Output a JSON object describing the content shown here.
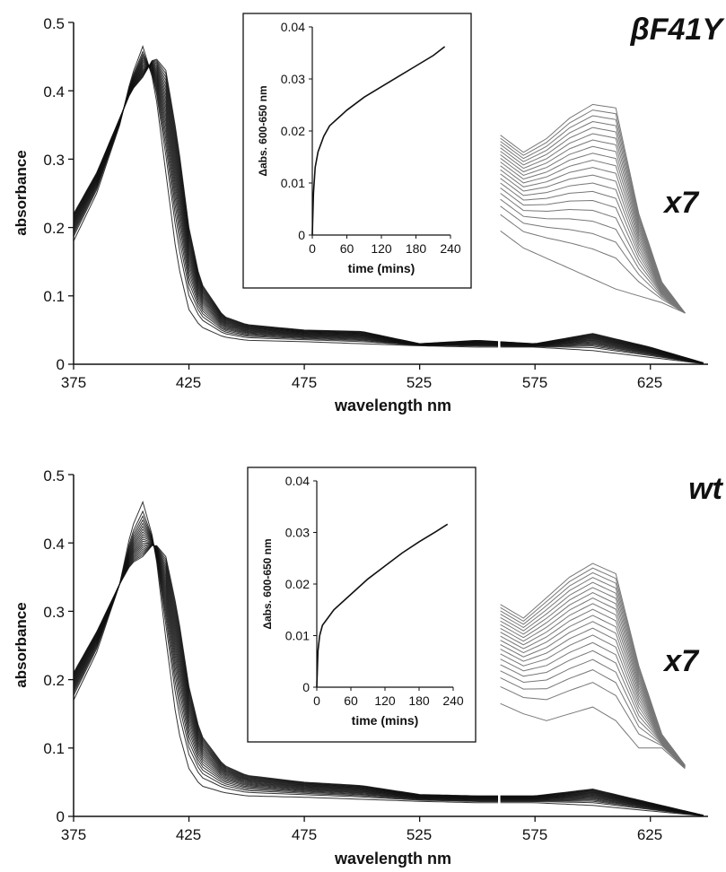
{
  "chart_data": [
    {
      "type": "line",
      "panel_label": "βF41Y",
      "scale_label": "x7",
      "xlabel": "wavelength nm",
      "ylabel": "absorbance",
      "xlim": [
        375,
        650
      ],
      "ylim": [
        0,
        0.5
      ],
      "xticks": [
        "375",
        "425",
        "475",
        "525",
        "575",
        "625"
      ],
      "yticks": [
        "0",
        "0.1",
        "0.2",
        "0.3",
        "0.4",
        "0.5"
      ],
      "n_traces": 20,
      "initial_spectrum": {
        "x": [
          375,
          385,
          395,
          400,
          405,
          410,
          415,
          420,
          425,
          430,
          440,
          450,
          475,
          500,
          525,
          550,
          575,
          600,
          625,
          650
        ],
        "y": [
          0.18,
          0.25,
          0.35,
          0.42,
          0.465,
          0.41,
          0.28,
          0.15,
          0.08,
          0.055,
          0.04,
          0.035,
          0.033,
          0.03,
          0.027,
          0.025,
          0.025,
          0.02,
          0.01,
          0.0
        ]
      },
      "final_spectrum": {
        "x": [
          375,
          385,
          395,
          400,
          405,
          410,
          415,
          420,
          425,
          430,
          440,
          450,
          475,
          500,
          525,
          550,
          575,
          600,
          625,
          650
        ],
        "y": [
          0.22,
          0.28,
          0.36,
          0.4,
          0.42,
          0.45,
          0.43,
          0.33,
          0.2,
          0.12,
          0.07,
          0.058,
          0.05,
          0.048,
          0.03,
          0.035,
          0.03,
          0.045,
          0.025,
          0.0
        ]
      },
      "scaled_region": {
        "x": [
          560,
          570,
          580,
          590,
          600,
          610,
          620,
          630,
          640
        ],
        "initial": [
          0.195,
          0.17,
          0.155,
          0.14,
          0.125,
          0.11,
          0.1,
          0.09,
          0.075
        ],
        "final": [
          0.335,
          0.31,
          0.33,
          0.36,
          0.38,
          0.375,
          0.22,
          0.12,
          0.075
        ]
      },
      "inset": {
        "xlabel": "time (mins)",
        "ylabel": "Δabs. 600-650 nm",
        "xlim": [
          0,
          240
        ],
        "ylim": [
          0,
          0.04
        ],
        "xticks": [
          "0",
          "60",
          "120",
          "180",
          "240"
        ],
        "yticks": [
          "0",
          "0.01",
          "0.02",
          "0.03",
          "0.04"
        ],
        "x": [
          0,
          2,
          5,
          10,
          20,
          30,
          45,
          60,
          90,
          120,
          150,
          180,
          210,
          230
        ],
        "y": [
          0,
          0.008,
          0.013,
          0.016,
          0.019,
          0.021,
          0.0225,
          0.024,
          0.0265,
          0.0285,
          0.0305,
          0.0325,
          0.0345,
          0.0362
        ]
      }
    },
    {
      "type": "line",
      "panel_label": "wt",
      "scale_label": "x7",
      "xlabel": "wavelength nm",
      "ylabel": "absorbance",
      "xlim": [
        375,
        650
      ],
      "ylim": [
        0,
        0.5
      ],
      "xticks": [
        "375",
        "425",
        "475",
        "525",
        "575",
        "625"
      ],
      "yticks": [
        "0",
        "0.1",
        "0.2",
        "0.3",
        "0.4",
        "0.5"
      ],
      "n_traces": 20,
      "initial_spectrum": {
        "x": [
          375,
          385,
          395,
          400,
          405,
          410,
          415,
          420,
          425,
          430,
          440,
          450,
          475,
          500,
          525,
          550,
          575,
          600,
          625,
          650
        ],
        "y": [
          0.17,
          0.24,
          0.34,
          0.42,
          0.46,
          0.4,
          0.26,
          0.13,
          0.07,
          0.045,
          0.035,
          0.03,
          0.028,
          0.025,
          0.022,
          0.02,
          0.02,
          0.016,
          0.008,
          0.0
        ]
      },
      "final_spectrum": {
        "x": [
          375,
          385,
          395,
          400,
          405,
          410,
          415,
          420,
          425,
          430,
          440,
          450,
          475,
          500,
          525,
          550,
          575,
          600,
          625,
          650
        ],
        "y": [
          0.21,
          0.27,
          0.34,
          0.37,
          0.38,
          0.4,
          0.38,
          0.3,
          0.19,
          0.12,
          0.075,
          0.06,
          0.05,
          0.045,
          0.032,
          0.03,
          0.03,
          0.04,
          0.02,
          0.0
        ]
      },
      "scaled_region": {
        "x": [
          560,
          570,
          580,
          590,
          600,
          610,
          620,
          630,
          640
        ],
        "initial": [
          0.165,
          0.15,
          0.14,
          0.15,
          0.16,
          0.14,
          0.1,
          0.1,
          0.07
        ],
        "final": [
          0.31,
          0.29,
          0.32,
          0.35,
          0.37,
          0.355,
          0.22,
          0.12,
          0.075
        ]
      },
      "inset": {
        "xlabel": "time (mins)",
        "ylabel": "Δabs. 600-650 nm",
        "xlim": [
          0,
          240
        ],
        "ylim": [
          0,
          0.04
        ],
        "xticks": [
          "0",
          "60",
          "120",
          "180",
          "240"
        ],
        "yticks": [
          "0",
          "0.01",
          "0.02",
          "0.03",
          "0.04"
        ],
        "x": [
          0,
          2,
          5,
          10,
          20,
          30,
          45,
          60,
          90,
          120,
          150,
          180,
          210,
          230
        ],
        "y": [
          0,
          0.007,
          0.01,
          0.012,
          0.0135,
          0.015,
          0.0165,
          0.018,
          0.021,
          0.0235,
          0.026,
          0.0282,
          0.0302,
          0.0316
        ]
      }
    }
  ]
}
